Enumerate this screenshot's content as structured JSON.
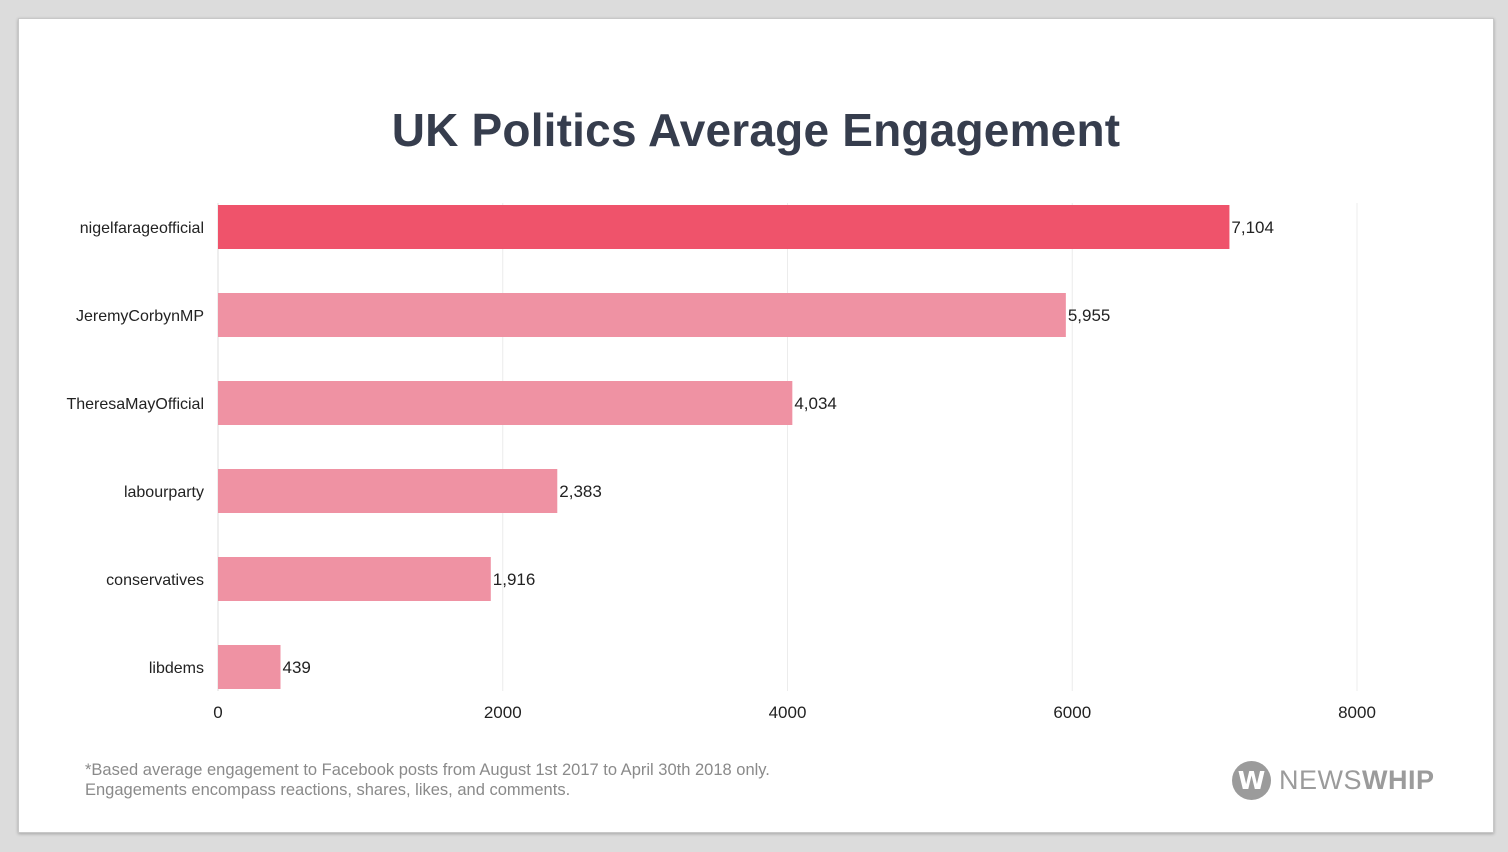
{
  "chart_data": {
    "type": "bar",
    "orientation": "horizontal",
    "title": "UK Politics Average Engagement",
    "categories": [
      "nigelfarageofficial",
      "JeremyCorbynMP",
      "TheresaMayOfficial",
      "labourparty",
      "conservatives",
      "libdems"
    ],
    "values": [
      7104,
      5955,
      4034,
      2383,
      1916,
      439
    ],
    "value_labels": [
      "7,104",
      "5,955",
      "4,034",
      "2,383",
      "1,916",
      "439"
    ],
    "xlim": [
      0,
      8000
    ],
    "xticks": [
      0,
      2000,
      4000,
      6000,
      8000
    ],
    "xtick_labels": [
      "0",
      "2000",
      "4000",
      "6000",
      "8000"
    ],
    "grid": true,
    "colors": {
      "highlight": "#ef536b",
      "default": "#ef92a3",
      "grid": "#ececec",
      "text": "#222222"
    },
    "highlight_index": 0
  },
  "footnote": {
    "line1": "*Based average engagement to Facebook posts from August 1st 2017 to April 30th 2018 only.",
    "line2": "Engagements encompass reactions, shares, likes, and comments."
  },
  "logo": {
    "mark": "W",
    "text_light": "NEWS",
    "text_bold": "WHIP"
  }
}
